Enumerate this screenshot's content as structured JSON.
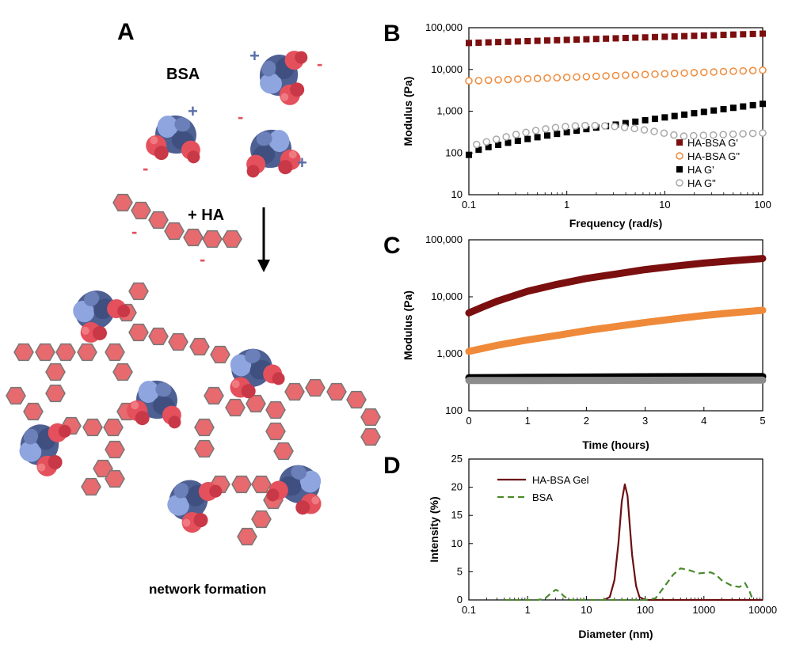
{
  "panel_a": {
    "letter": "A",
    "bsa_label": "BSA",
    "ha_label": "+ HA",
    "caption": "network formation",
    "plus_sign": "+",
    "minus_sign": "-",
    "colors": {
      "protein_dark": "#4e5f92",
      "protein_light": "#8ea5e0",
      "protein_red": "#e4505c",
      "hexagon": "#e76a6e",
      "hexagon_edge": "#777777"
    }
  },
  "chart_data": [
    {
      "panel": "B",
      "type": "scatter",
      "xlabel": "Frequency (rad/s)",
      "ylabel": "Modulus (Pa)",
      "xscale": "log",
      "yscale": "log",
      "xlim": [
        0.1,
        100
      ],
      "ylim": [
        10,
        100000
      ],
      "x_ticks": [
        0.1,
        1,
        10,
        100
      ],
      "x_tick_labels": [
        "0.1",
        "1",
        "10",
        "100"
      ],
      "y_ticks": [
        10,
        100,
        1000,
        10000,
        100000
      ],
      "y_tick_labels": [
        "10",
        "100",
        "1,000",
        "10,000",
        "100,000"
      ],
      "legend_position": "bottom-right",
      "series": [
        {
          "name": "HA-BSA G'",
          "marker": "square-filled",
          "color": "#7b0f0f",
          "x_start": 0.1,
          "x_end": 100,
          "points": 31,
          "y_start": 43000,
          "y_end": 72000
        },
        {
          "name": "HA-BSA G\"",
          "marker": "circle-open",
          "color": "#ef8a3a",
          "x_start": 0.1,
          "x_end": 100,
          "points": 31,
          "y_start": 5300,
          "y_end": 9600
        },
        {
          "name": "HA G'",
          "marker": "square-filled",
          "color": "#000000",
          "x_start": 0.1,
          "x_end": 100,
          "points": 31,
          "y_start": 90,
          "y_end": 1500
        },
        {
          "name": "HA G\"",
          "marker": "circle-open",
          "color": "#a8a8a8",
          "x_start": 0.12,
          "x_end": 100,
          "points": 30,
          "y_start": 160,
          "y_end": 300
        }
      ]
    },
    {
      "panel": "C",
      "type": "line",
      "xlabel": "Time (hours)",
      "ylabel": "Modulus (Pa)",
      "yscale": "log",
      "xlim": [
        0,
        5
      ],
      "ylim": [
        100,
        100000
      ],
      "x_ticks": [
        0,
        1,
        2,
        3,
        4,
        5
      ],
      "x_tick_labels": [
        "0",
        "1",
        "2",
        "3",
        "4",
        "5"
      ],
      "y_ticks": [
        100,
        1000,
        10000,
        100000
      ],
      "y_tick_labels": [
        "100",
        "1,000",
        "10,000",
        "100,000"
      ],
      "series": [
        {
          "color": "#7b0f0f",
          "x": [
            0,
            0.25,
            0.5,
            1,
            1.5,
            2,
            2.5,
            3,
            3.5,
            4,
            4.5,
            5
          ],
          "y": [
            5200,
            6700,
            8500,
            12500,
            16500,
            21000,
            25000,
            30000,
            34500,
            39000,
            43000,
            47000
          ]
        },
        {
          "color": "#ef8a3a",
          "x": [
            0,
            0.25,
            0.5,
            1,
            1.5,
            2,
            2.5,
            3,
            3.5,
            4,
            4.5,
            5
          ],
          "y": [
            1100,
            1250,
            1420,
            1750,
            2100,
            2550,
            3000,
            3550,
            4100,
            4700,
            5250,
            5800
          ]
        },
        {
          "color": "#000000",
          "x": [
            0,
            1,
            2,
            3,
            4,
            5
          ],
          "y": [
            380,
            385,
            390,
            395,
            398,
            400
          ]
        },
        {
          "color": "#8c8c8c",
          "x": [
            0,
            1,
            2,
            3,
            4,
            5
          ],
          "y": [
            340,
            340,
            342,
            343,
            344,
            345
          ]
        }
      ]
    },
    {
      "panel": "D",
      "type": "line",
      "xlabel": "Diameter (nm)",
      "ylabel": "Intensity (%)",
      "xscale": "log",
      "xlim": [
        0.1,
        10000
      ],
      "ylim": [
        0,
        25
      ],
      "x_ticks": [
        0.1,
        1,
        10,
        100,
        1000,
        10000
      ],
      "x_tick_labels": [
        "0.1",
        "1",
        "10",
        "100",
        "1000",
        "10000"
      ],
      "y_ticks": [
        0,
        5,
        10,
        15,
        20,
        25
      ],
      "y_tick_labels": [
        "0",
        "5",
        "10",
        "15",
        "20",
        "25"
      ],
      "legend_position": "top-left",
      "series": [
        {
          "name": "HA-BSA Gel",
          "style": "solid",
          "color": "#6b0f0f",
          "x": [
            20,
            25,
            30,
            35,
            40,
            45,
            50,
            55,
            60,
            70,
            80,
            100,
            1000,
            10000
          ],
          "y": [
            0,
            0.5,
            3.5,
            10,
            17.5,
            20.5,
            18.5,
            13,
            8,
            2.5,
            0.5,
            0,
            0,
            0
          ]
        },
        {
          "name": "BSA",
          "style": "dashed",
          "color": "#4a8a2a",
          "x": [
            0.4,
            1.5,
            2,
            2.5,
            3,
            3.5,
            4,
            5,
            8,
            100,
            150,
            200,
            300,
            400,
            600,
            800,
            1000,
            1300,
            1600,
            2000,
            3000,
            4000,
            4500,
            5000,
            6000,
            6500,
            7000
          ],
          "y": [
            0,
            0,
            0.3,
            1.2,
            1.8,
            1.5,
            0.8,
            0,
            0,
            0,
            0.3,
            2,
            4.5,
            5.6,
            5.2,
            4.7,
            4.8,
            4.9,
            4.5,
            3.5,
            2.5,
            2.3,
            2.6,
            3,
            1.5,
            0.5,
            0
          ]
        }
      ]
    }
  ]
}
